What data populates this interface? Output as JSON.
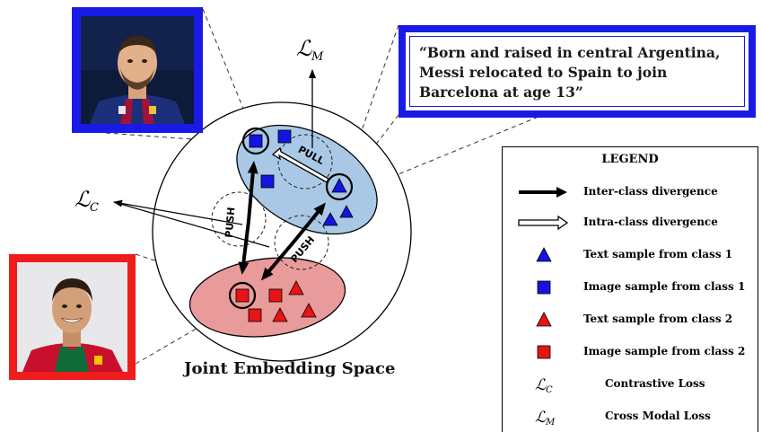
{
  "quote": {
    "text": "“Born and raised in central Argentina, Messi relocated to Spain to join Barcelona at age 13”"
  },
  "diagram": {
    "caption": "Joint Embedding Space",
    "loss_m": "ℒ",
    "loss_m_sub": "M",
    "loss_c": "ℒ",
    "loss_c_sub": "C",
    "pull_label": "PULL",
    "push_labels": [
      "PUSH",
      "PUSH"
    ],
    "colors": {
      "class1_fill": "#a9c8e6",
      "class2_fill": "#e99a9a",
      "class1_marker": "#1414e0",
      "class2_marker": "#e81414"
    }
  },
  "legend": {
    "title": "LEGEND",
    "items": [
      {
        "symbol": "thick-arrow",
        "label": "Inter-class divergence"
      },
      {
        "symbol": "hollow-arrow",
        "label": "Intra-class divergence"
      },
      {
        "symbol": "blue-triangle",
        "label": "Text sample from class 1"
      },
      {
        "symbol": "blue-square",
        "label": "Image sample from class 1"
      },
      {
        "symbol": "red-triangle",
        "label": "Text sample from class 2"
      },
      {
        "symbol": "red-square",
        "label": "Image sample from class 2"
      },
      {
        "symbol": "loss-c",
        "symbol_text": "ℒ",
        "symbol_sub": "C",
        "label": "Contrastive Loss"
      },
      {
        "symbol": "loss-m",
        "symbol_text": "ℒ",
        "symbol_sub": "M",
        "label": "Cross Modal Loss"
      }
    ]
  }
}
